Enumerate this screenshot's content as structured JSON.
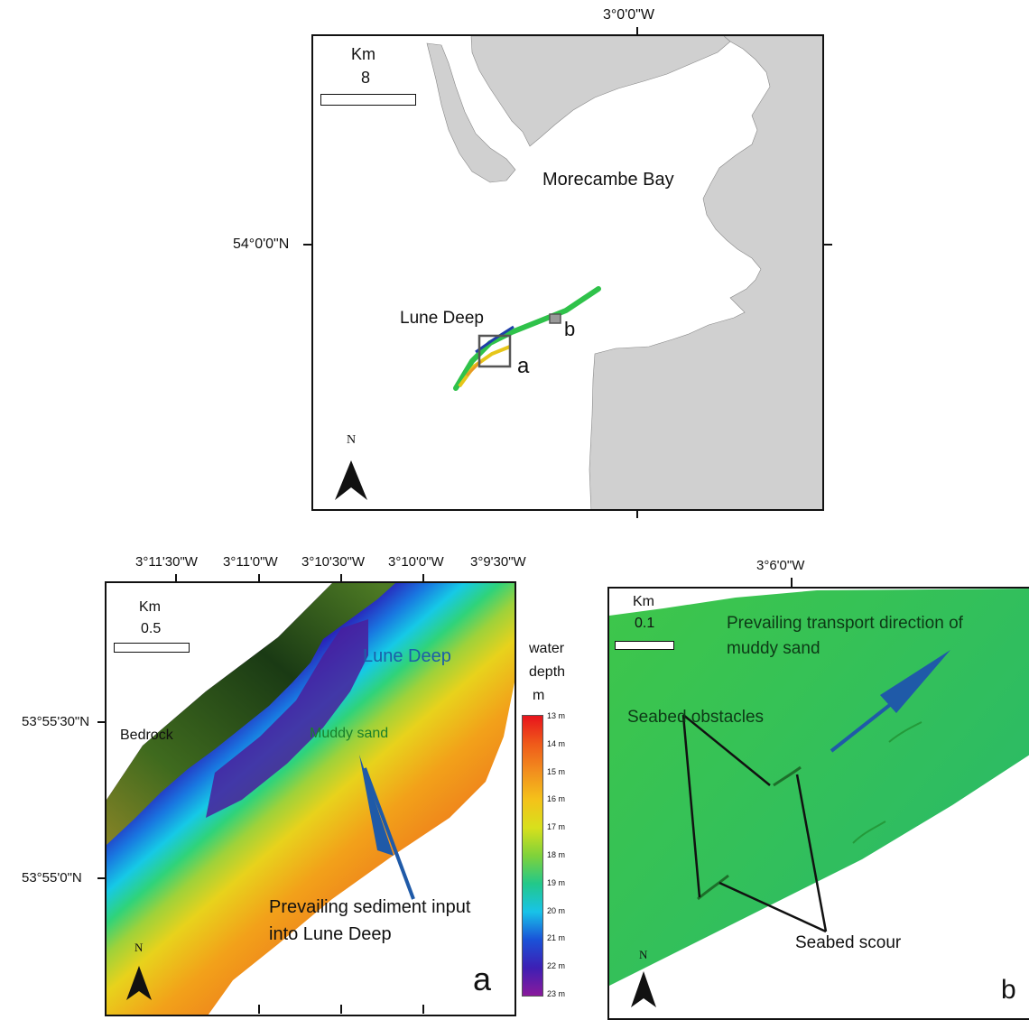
{
  "overview": {
    "lon_label": "3°0'0\"W",
    "lat_label": "54°0'0\"N",
    "scale_unit": "Km",
    "scale_value": "8",
    "place_bay": "Morecambe Bay",
    "place_deep": "Lune Deep",
    "inset_a": "a",
    "inset_b": "b",
    "north": "N"
  },
  "panel_a": {
    "lon_labels": [
      "3°11'30\"W",
      "3°11'0\"W",
      "3°10'30\"W",
      "3°10'0\"W",
      "3°9'30\"W"
    ],
    "lat_labels": [
      "53°55'30\"N",
      "53°55'0\"N"
    ],
    "scale_unit": "Km",
    "scale_value": "0.5",
    "label_deep": "Lune Deep",
    "label_bedrock": "Bedrock",
    "label_muddy": "Muddy sand",
    "annotation_line1": "Prevailing sediment input",
    "annotation_line2": "into Lune Deep",
    "panel_letter": "a",
    "north": "N"
  },
  "legend": {
    "title_line1": "water",
    "title_line2": "depth",
    "title_line3": "m",
    "ticks": [
      "13 m",
      "14 m",
      "15 m",
      "16 m",
      "17 m",
      "18 m",
      "19 m",
      "20 m",
      "21 m",
      "22 m",
      "23 m"
    ]
  },
  "panel_b": {
    "lon_label": "3°6'0\"W",
    "scale_unit": "Km",
    "scale_value": "0.1",
    "transport_line1": "Prevailing transport direction of",
    "transport_line2": "muddy sand",
    "label_obstacles": "Seabed obstacles",
    "label_scour": "Seabed scour",
    "panel_letter": "b",
    "north": "N"
  },
  "colors": {
    "land": "#d0d0d0",
    "arrow": "#1f5aa8",
    "swath_green": "#2fc24a"
  }
}
